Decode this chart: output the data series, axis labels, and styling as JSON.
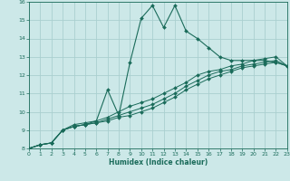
{
  "xlabel": "Humidex (Indice chaleur)",
  "xlim": [
    0,
    23
  ],
  "ylim": [
    8,
    16
  ],
  "xticks": [
    0,
    1,
    2,
    3,
    4,
    5,
    6,
    7,
    8,
    9,
    10,
    11,
    12,
    13,
    14,
    15,
    16,
    17,
    18,
    19,
    20,
    21,
    22,
    23
  ],
  "yticks": [
    8,
    9,
    10,
    11,
    12,
    13,
    14,
    15,
    16
  ],
  "bg_color": "#cce8e8",
  "grid_color": "#aacfcf",
  "line_color": "#1a6b5a",
  "line1_x": [
    0,
    1,
    2,
    3,
    4,
    5,
    6,
    7,
    8,
    9,
    10,
    11,
    12,
    13,
    14,
    15,
    16,
    17,
    18,
    19,
    20,
    21,
    22,
    23
  ],
  "line1_y": [
    8.0,
    8.2,
    8.3,
    9.0,
    9.2,
    9.3,
    9.5,
    11.2,
    9.8,
    12.7,
    15.1,
    15.8,
    14.6,
    15.8,
    14.4,
    14.0,
    13.5,
    13.0,
    12.8,
    12.8,
    12.8,
    12.8,
    12.7,
    12.5
  ],
  "line2_x": [
    0,
    1,
    2,
    3,
    4,
    5,
    6,
    7,
    8,
    9,
    10,
    11,
    12,
    13,
    14,
    15,
    16,
    17,
    18,
    19,
    20,
    21,
    22,
    23
  ],
  "line2_y": [
    8.0,
    8.2,
    8.3,
    9.0,
    9.2,
    9.3,
    9.4,
    9.5,
    9.7,
    9.8,
    10.0,
    10.2,
    10.5,
    10.8,
    11.2,
    11.5,
    11.8,
    12.0,
    12.2,
    12.4,
    12.5,
    12.6,
    12.7,
    12.5
  ],
  "line3_x": [
    0,
    1,
    2,
    3,
    4,
    5,
    6,
    7,
    8,
    9,
    10,
    11,
    12,
    13,
    14,
    15,
    16,
    17,
    18,
    19,
    20,
    21,
    22,
    23
  ],
  "line3_y": [
    8.0,
    8.2,
    8.3,
    9.0,
    9.2,
    9.3,
    9.4,
    9.6,
    9.8,
    10.0,
    10.2,
    10.4,
    10.7,
    11.0,
    11.4,
    11.7,
    12.0,
    12.2,
    12.3,
    12.5,
    12.6,
    12.7,
    12.8,
    12.5
  ],
  "line4_x": [
    0,
    1,
    2,
    3,
    4,
    5,
    6,
    7,
    8,
    9,
    10,
    11,
    12,
    13,
    14,
    15,
    16,
    17,
    18,
    19,
    20,
    21,
    22,
    23
  ],
  "line4_y": [
    8.0,
    8.2,
    8.3,
    9.0,
    9.3,
    9.4,
    9.5,
    9.7,
    10.0,
    10.3,
    10.5,
    10.7,
    11.0,
    11.3,
    11.6,
    12.0,
    12.2,
    12.3,
    12.5,
    12.6,
    12.8,
    12.9,
    13.0,
    12.5
  ]
}
